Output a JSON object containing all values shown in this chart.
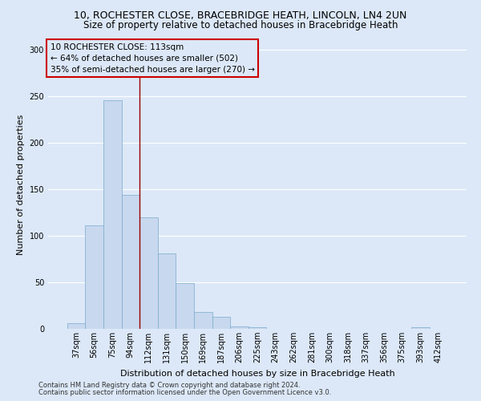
{
  "title_line1": "10, ROCHESTER CLOSE, BRACEBRIDGE HEATH, LINCOLN, LN4 2UN",
  "title_line2": "Size of property relative to detached houses in Bracebridge Heath",
  "xlabel": "Distribution of detached houses by size in Bracebridge Heath",
  "ylabel": "Number of detached properties",
  "footer_line1": "Contains HM Land Registry data © Crown copyright and database right 2024.",
  "footer_line2": "Contains public sector information licensed under the Open Government Licence v3.0.",
  "annotation_line1": "10 ROCHESTER CLOSE: 113sqm",
  "annotation_line2": "← 64% of detached houses are smaller (502)",
  "annotation_line3": "35% of semi-detached houses are larger (270) →",
  "bar_labels": [
    "37sqm",
    "56sqm",
    "75sqm",
    "94sqm",
    "112sqm",
    "131sqm",
    "150sqm",
    "169sqm",
    "187sqm",
    "206sqm",
    "225sqm",
    "243sqm",
    "262sqm",
    "281sqm",
    "300sqm",
    "318sqm",
    "337sqm",
    "356sqm",
    "375sqm",
    "393sqm",
    "412sqm"
  ],
  "bar_values": [
    6,
    111,
    245,
    144,
    120,
    81,
    49,
    18,
    13,
    3,
    2,
    0,
    0,
    0,
    0,
    0,
    0,
    0,
    0,
    2,
    0
  ],
  "bar_color": "#c8d8ee",
  "bar_edge_color": "#7aaBcc",
  "vline_color": "#990000",
  "ylim": [
    0,
    310
  ],
  "yticks": [
    0,
    50,
    100,
    150,
    200,
    250,
    300
  ],
  "bg_color": "#dce8f8",
  "grid_color": "#ffffff",
  "annotation_box_edge": "#cc0000",
  "title_fontsize": 9,
  "subtitle_fontsize": 8.5,
  "axis_label_fontsize": 8,
  "tick_fontsize": 7,
  "annotation_fontsize": 7.5,
  "footer_fontsize": 6
}
